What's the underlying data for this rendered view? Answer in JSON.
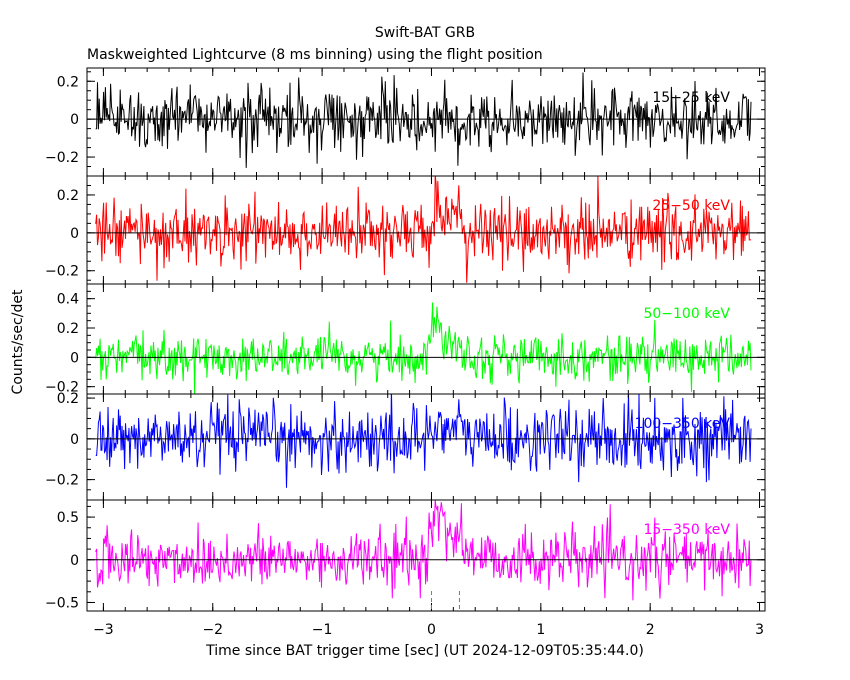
{
  "chart_data": {
    "type": "line",
    "title": "Swift-BAT GRB",
    "subtitle": "Maskweighted Lightcurve (8 ms binning) using the flight position",
    "xlabel": "Time since BAT trigger time [sec] (UT 2024-12-09T05:35:44.0)",
    "ylabel": "Counts/sec/det",
    "xlim": [
      -3.15,
      3.05
    ],
    "x_ticks": [
      -3,
      -2,
      -1,
      0,
      1,
      2,
      3
    ],
    "x_tick_labels": [
      "−3",
      "−2",
      "−1",
      "0",
      "1",
      "2",
      "3"
    ],
    "bin_width_s": 0.008,
    "data_range": [
      -3.07,
      2.93
    ],
    "reference_lines_x": [
      0,
      0.256
    ],
    "panels": [
      {
        "name": "15-25 keV",
        "label": "15−25 keV",
        "color": "#000000",
        "ylim": [
          -0.3,
          0.27
        ],
        "yticks": [
          -0.2,
          0,
          0.2
        ],
        "ytick_labels": [
          "−0.2",
          "0",
          "0.2"
        ],
        "noise_sigma": 0.085,
        "burst_peak": 0.0,
        "burst_decay_s": 0.15
      },
      {
        "name": "25-50 keV",
        "label": "25−50 keV",
        "color": "#ff0000",
        "ylim": [
          -0.27,
          0.3
        ],
        "yticks": [
          -0.2,
          0,
          0.2
        ],
        "ytick_labels": [
          "−0.2",
          "0",
          "0.2"
        ],
        "noise_sigma": 0.085,
        "burst_peak": 0.09,
        "burst_decay_s": 0.15
      },
      {
        "name": "50-100 keV",
        "label": "50−100 keV",
        "color": "#00ff00",
        "ylim": [
          -0.25,
          0.5
        ],
        "yticks": [
          -0.2,
          0,
          0.2,
          0.4
        ],
        "ytick_labels": [
          "−0.2",
          "0",
          "0.2",
          "0.4"
        ],
        "noise_sigma": 0.075,
        "burst_peak": 0.2,
        "burst_decay_s": 0.15
      },
      {
        "name": "100-350 keV",
        "label": "100−350 keV",
        "color": "#0000ff",
        "ylim": [
          -0.3,
          0.22
        ],
        "yticks": [
          -0.2,
          0,
          0.2
        ],
        "ytick_labels": [
          "−0.2",
          "0",
          "0.2"
        ],
        "noise_sigma": 0.08,
        "burst_peak": 0.07,
        "burst_decay_s": 0.2
      },
      {
        "name": "15-350 keV",
        "label": "15−350 keV",
        "color": "#ff00ff",
        "ylim": [
          -0.6,
          0.7
        ],
        "yticks": [
          -0.5,
          0,
          0.5
        ],
        "ytick_labels": [
          "−0.5",
          "0",
          "0.5"
        ],
        "noise_sigma": 0.17,
        "burst_peak": 0.45,
        "burst_decay_s": 0.2
      }
    ]
  }
}
